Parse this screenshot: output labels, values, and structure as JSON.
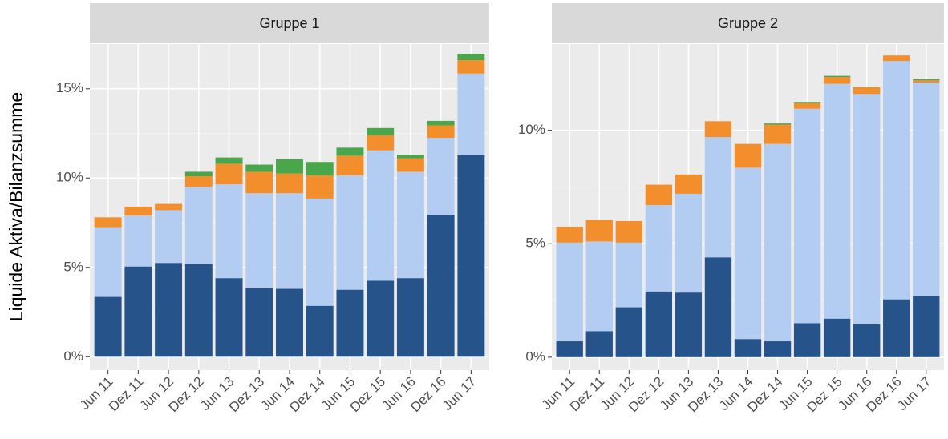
{
  "chart_data": [
    {
      "type": "stacked_bar",
      "title": "Gruppe 1",
      "y_label": "Liquide Aktiva/Bilanzsumme",
      "categories": [
        "Jun 11",
        "Dez 11",
        "Jun 12",
        "Dez 12",
        "Jun 13",
        "Dez 13",
        "Jun 14",
        "Dez 14",
        "Jun 15",
        "Dez 15",
        "Jun 16",
        "Dez 16",
        "Jun 17"
      ],
      "series": [
        {
          "color": "#26538a",
          "values": [
            3.35,
            5.05,
            5.25,
            5.2,
            4.4,
            3.85,
            3.8,
            2.85,
            3.75,
            4.25,
            4.4,
            7.95,
            11.3
          ]
        },
        {
          "color": "#b3cdf2",
          "values": [
            3.9,
            2.85,
            2.95,
            4.3,
            5.25,
            5.3,
            5.35,
            6.0,
            6.4,
            7.3,
            5.95,
            4.3,
            4.55
          ]
        },
        {
          "color": "#f28e2b",
          "values": [
            0.55,
            0.5,
            0.35,
            0.6,
            1.15,
            1.2,
            1.1,
            1.3,
            1.1,
            0.85,
            0.75,
            0.7,
            0.75
          ]
        },
        {
          "color": "#4aa64a",
          "values": [
            0,
            0,
            0,
            0.25,
            0.35,
            0.4,
            0.8,
            0.75,
            0.45,
            0.4,
            0.2,
            0.25,
            0.35
          ]
        }
      ],
      "ylim": [
        -0.75,
        17.5
      ],
      "yticks": [
        {
          "value": 0,
          "label": "0%"
        },
        {
          "value": 5,
          "label": "5%"
        },
        {
          "value": 10,
          "label": "10%"
        },
        {
          "value": 15,
          "label": "15%"
        }
      ],
      "grid": true
    },
    {
      "type": "stacked_bar",
      "title": "Gruppe 2",
      "categories": [
        "Jun 11",
        "Dez 11",
        "Jun 12",
        "Dez 12",
        "Jun 13",
        "Dez 13",
        "Jun 14",
        "Dez 14",
        "Jun 15",
        "Dez 15",
        "Jun 16",
        "Dez 16",
        "Jun 17"
      ],
      "series": [
        {
          "color": "#26538a",
          "values": [
            0.7,
            1.15,
            2.2,
            2.9,
            2.85,
            4.4,
            0.8,
            0.7,
            1.5,
            1.7,
            1.45,
            2.55,
            2.7
          ]
        },
        {
          "color": "#b3cdf2",
          "values": [
            4.35,
            3.95,
            2.85,
            3.8,
            4.35,
            5.3,
            7.55,
            8.7,
            9.45,
            10.35,
            10.15,
            10.5,
            9.4
          ]
        },
        {
          "color": "#f28e2b",
          "values": [
            0.7,
            0.95,
            0.95,
            0.9,
            0.85,
            0.7,
            1.05,
            0.85,
            0.25,
            0.3,
            0.3,
            0.25,
            0.1
          ]
        },
        {
          "color": "#4aa64a",
          "values": [
            0,
            0,
            0,
            0,
            0,
            0,
            0,
            0.05,
            0.05,
            0.05,
            0,
            0,
            0.05
          ]
        }
      ],
      "ylim": [
        -0.57,
        13.8
      ],
      "yticks": [
        {
          "value": 0,
          "label": "0%"
        },
        {
          "value": 5,
          "label": "5%"
        },
        {
          "value": 10,
          "label": "10%"
        }
      ],
      "grid": true
    }
  ]
}
